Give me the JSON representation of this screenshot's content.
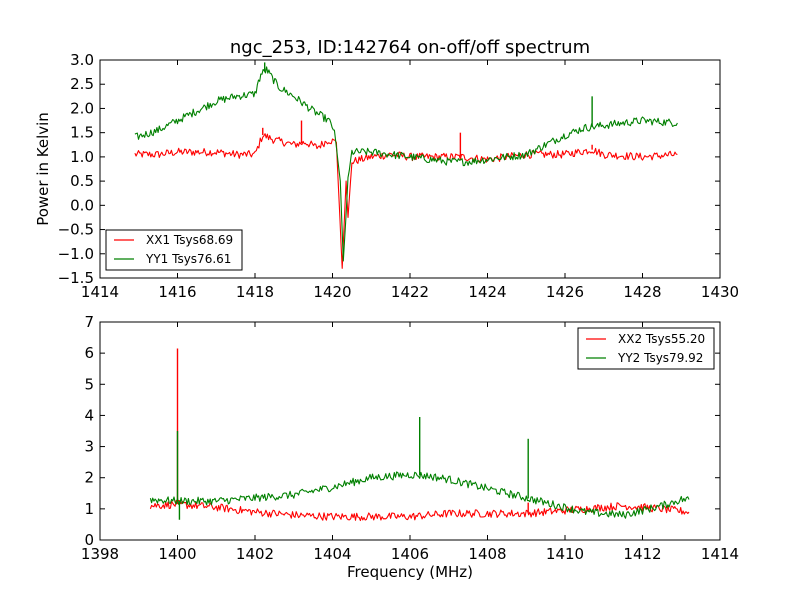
{
  "chart_data": [
    {
      "type": "line",
      "title": "ngc_253, ID:142764 on-off/off spectrum",
      "xlabel": "",
      "ylabel": "Power in Kelvin",
      "xlim": [
        1414,
        1430
      ],
      "ylim": [
        -1.5,
        3.0
      ],
      "x_ticks": [
        "1414",
        "1416",
        "1418",
        "1420",
        "1422",
        "1424",
        "1426",
        "1428",
        "1430"
      ],
      "y_ticks": [
        "−1.5",
        "−1.0",
        "−0.5",
        "0.0",
        "0.5",
        "1.0",
        "1.5",
        "2.0",
        "2.5",
        "3.0"
      ],
      "legend_position": "lower-left",
      "grid": false,
      "series": [
        {
          "name": "XX1 Tsys68.69",
          "color": "#ff0000",
          "points": [
            [
              1414.9,
              1.05
            ],
            [
              1415.5,
              1.05
            ],
            [
              1416.0,
              1.1
            ],
            [
              1416.5,
              1.1
            ],
            [
              1417.0,
              1.1
            ],
            [
              1417.5,
              1.05
            ],
            [
              1418.0,
              1.05
            ],
            [
              1418.2,
              1.45
            ],
            [
              1418.5,
              1.35
            ],
            [
              1419.0,
              1.25
            ],
            [
              1419.3,
              1.3
            ],
            [
              1419.6,
              1.2
            ],
            [
              1419.9,
              1.35
            ],
            [
              1420.1,
              1.3
            ],
            [
              1420.25,
              -1.3
            ],
            [
              1420.35,
              0.5
            ],
            [
              1420.4,
              -0.25
            ],
            [
              1420.5,
              0.9
            ],
            [
              1421.0,
              1.0
            ],
            [
              1421.5,
              1.05
            ],
            [
              1422.0,
              1.0
            ],
            [
              1422.5,
              1.0
            ],
            [
              1423.0,
              1.0
            ],
            [
              1423.3,
              1.0
            ],
            [
              1424.0,
              0.95
            ],
            [
              1425.0,
              1.05
            ],
            [
              1426.0,
              1.05
            ],
            [
              1426.7,
              1.15
            ],
            [
              1427.0,
              1.05
            ],
            [
              1428.0,
              1.0
            ],
            [
              1428.9,
              1.05
            ]
          ],
          "spikes": [
            [
              1418.2,
              1.6
            ],
            [
              1419.2,
              1.75
            ],
            [
              1423.3,
              1.5
            ],
            [
              1426.7,
              1.25
            ]
          ]
        },
        {
          "name": "YY1 Tsys76.61",
          "color": "#008000",
          "points": [
            [
              1414.9,
              1.4
            ],
            [
              1415.5,
              1.55
            ],
            [
              1416.0,
              1.75
            ],
            [
              1416.5,
              1.95
            ],
            [
              1417.0,
              2.15
            ],
            [
              1417.5,
              2.25
            ],
            [
              1418.0,
              2.3
            ],
            [
              1418.15,
              2.7
            ],
            [
              1418.3,
              2.8
            ],
            [
              1418.6,
              2.45
            ],
            [
              1419.0,
              2.25
            ],
            [
              1419.5,
              1.95
            ],
            [
              1419.9,
              1.75
            ],
            [
              1420.05,
              1.55
            ],
            [
              1420.2,
              0.5
            ],
            [
              1420.28,
              -1.15
            ],
            [
              1420.4,
              0.5
            ],
            [
              1420.5,
              1.1
            ],
            [
              1421.0,
              1.1
            ],
            [
              1421.5,
              1.05
            ],
            [
              1422.0,
              1.0
            ],
            [
              1422.5,
              0.95
            ],
            [
              1423.0,
              0.9
            ],
            [
              1423.5,
              0.9
            ],
            [
              1424.0,
              0.95
            ],
            [
              1424.5,
              1.0
            ],
            [
              1425.0,
              1.05
            ],
            [
              1425.5,
              1.25
            ],
            [
              1426.0,
              1.45
            ],
            [
              1426.5,
              1.6
            ],
            [
              1427.0,
              1.65
            ],
            [
              1427.5,
              1.7
            ],
            [
              1428.0,
              1.75
            ],
            [
              1428.9,
              1.7
            ]
          ],
          "spikes": [
            [
              1418.25,
              2.95
            ],
            [
              1426.7,
              2.25
            ]
          ]
        }
      ]
    },
    {
      "type": "line",
      "title": "",
      "xlabel": "Frequency (MHz)",
      "ylabel": "",
      "xlim": [
        1398,
        1414
      ],
      "ylim": [
        0,
        7
      ],
      "x_ticks": [
        "1398",
        "1400",
        "1402",
        "1404",
        "1406",
        "1408",
        "1410",
        "1412",
        "1414"
      ],
      "y_ticks": [
        "0",
        "1",
        "2",
        "3",
        "4",
        "5",
        "6",
        "7"
      ],
      "legend_position": "upper-right",
      "grid": false,
      "series": [
        {
          "name": "XX2 Tsys55.20",
          "color": "#ff0000",
          "points": [
            [
              1399.3,
              1.1
            ],
            [
              1400.0,
              1.15
            ],
            [
              1401.0,
              1.05
            ],
            [
              1402.0,
              0.9
            ],
            [
              1403.0,
              0.8
            ],
            [
              1404.0,
              0.75
            ],
            [
              1405.0,
              0.75
            ],
            [
              1406.0,
              0.75
            ],
            [
              1407.0,
              0.85
            ],
            [
              1408.0,
              0.85
            ],
            [
              1409.0,
              0.85
            ],
            [
              1410.0,
              0.95
            ],
            [
              1410.5,
              1.0
            ],
            [
              1411.0,
              1.05
            ],
            [
              1411.5,
              1.1
            ],
            [
              1412.0,
              1.05
            ],
            [
              1412.5,
              1.0
            ],
            [
              1413.2,
              0.9
            ]
          ],
          "spikes": [
            [
              1400.0,
              6.15
            ],
            [
              1409.05,
              1.2
            ]
          ]
        },
        {
          "name": "YY2 Tsys79.92",
          "color": "#008000",
          "points": [
            [
              1399.3,
              1.3
            ],
            [
              1400.0,
              1.25
            ],
            [
              1401.0,
              1.25
            ],
            [
              1402.0,
              1.35
            ],
            [
              1403.0,
              1.45
            ],
            [
              1404.0,
              1.7
            ],
            [
              1405.0,
              2.0
            ],
            [
              1406.0,
              2.1
            ],
            [
              1406.5,
              2.05
            ],
            [
              1407.0,
              1.95
            ],
            [
              1408.0,
              1.65
            ],
            [
              1409.0,
              1.35
            ],
            [
              1410.0,
              1.05
            ],
            [
              1410.5,
              0.9
            ],
            [
              1411.0,
              0.85
            ],
            [
              1411.5,
              0.8
            ],
            [
              1412.0,
              0.95
            ],
            [
              1412.5,
              1.1
            ],
            [
              1413.0,
              1.3
            ],
            [
              1413.2,
              1.3
            ]
          ],
          "spikes": [
            [
              1400.0,
              3.5
            ],
            [
              1400.05,
              0.65
            ],
            [
              1406.25,
              3.95
            ],
            [
              1409.05,
              3.25
            ]
          ]
        }
      ]
    }
  ]
}
